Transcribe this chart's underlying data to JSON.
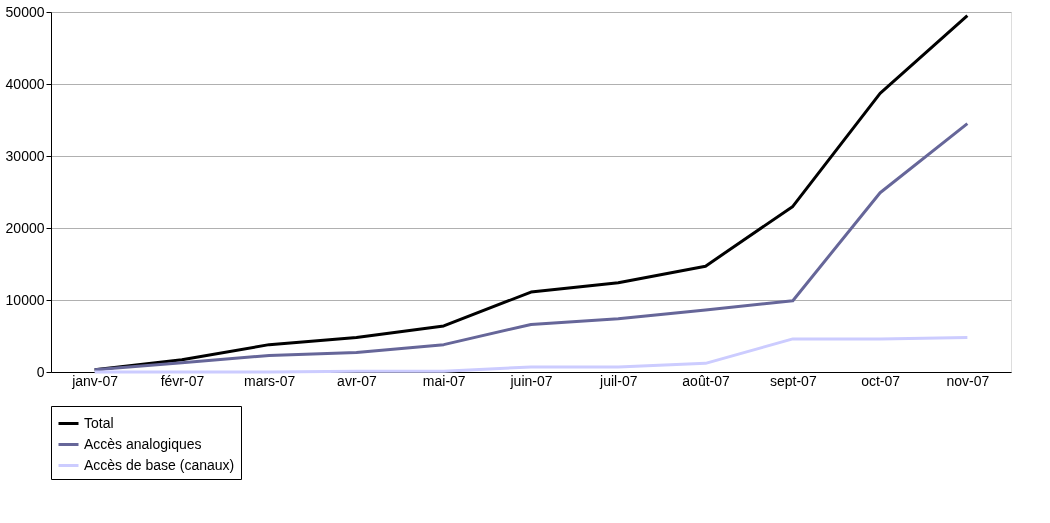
{
  "chart_data": {
    "type": "line",
    "categories": [
      "janv-07",
      "févr-07",
      "mars-07",
      "avr-07",
      "mai-07",
      "juin-07",
      "juil-07",
      "août-07",
      "sept-07",
      "oct-07",
      "nov-07"
    ],
    "series": [
      {
        "name": "Total",
        "color": "#000000",
        "values": [
          300,
          1700,
          3800,
          4800,
          6400,
          11100,
          12400,
          14700,
          23000,
          38700,
          49500
        ]
      },
      {
        "name": "Accès analogiques",
        "color": "#666699",
        "values": [
          300,
          1300,
          2300,
          2700,
          3800,
          6600,
          7400,
          8600,
          9900,
          24900,
          34500
        ]
      },
      {
        "name": "Accès de base (canaux)",
        "color": "#ccccff",
        "values": [
          0,
          0,
          0,
          100,
          100,
          700,
          700,
          1200,
          4600,
          4600,
          4800
        ]
      }
    ],
    "ylim": [
      0,
      50000
    ],
    "yticks": [
      0,
      10000,
      20000,
      30000,
      40000,
      50000
    ],
    "grid": "y",
    "legend": "bottom",
    "marker": "none",
    "line_style": "solid"
  }
}
